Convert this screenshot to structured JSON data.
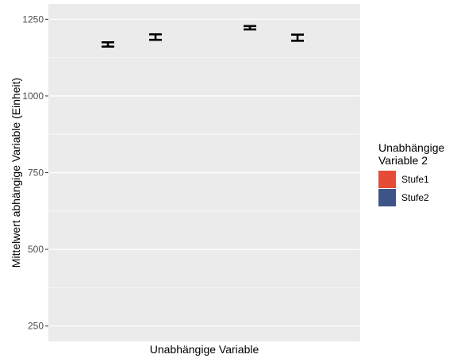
{
  "chart_data": {
    "type": "bar",
    "xlabel": "Unabhängige Variable",
    "ylabel": "Mittelwert abhängige Variable (Einheit)",
    "ylim": [
      200,
      1300
    ],
    "yticks": [
      250,
      500,
      750,
      1000,
      1250
    ],
    "grid": true,
    "legend": {
      "title_lines": [
        "Unabhängige",
        "Variable 2"
      ],
      "placement": "right",
      "entries": [
        {
          "label": "Stufe1",
          "color": "#E64B35"
        },
        {
          "label": "Stufe2",
          "color": "#3C5488"
        }
      ]
    },
    "groups": [
      {
        "points": [
          {
            "series": "Stufe1",
            "mean": 1168,
            "lower": 1161,
            "upper": 1175
          },
          {
            "series": "Stufe2",
            "mean": 1192,
            "lower": 1183,
            "upper": 1201
          }
        ]
      },
      {
        "points": [
          {
            "series": "Stufe1",
            "mean": 1222,
            "lower": 1217,
            "upper": 1228
          },
          {
            "series": "Stufe2",
            "mean": 1190,
            "lower": 1180,
            "upper": 1200
          }
        ]
      }
    ],
    "panel_color": "#EBEBEB",
    "errorbar_color": "#000000"
  }
}
